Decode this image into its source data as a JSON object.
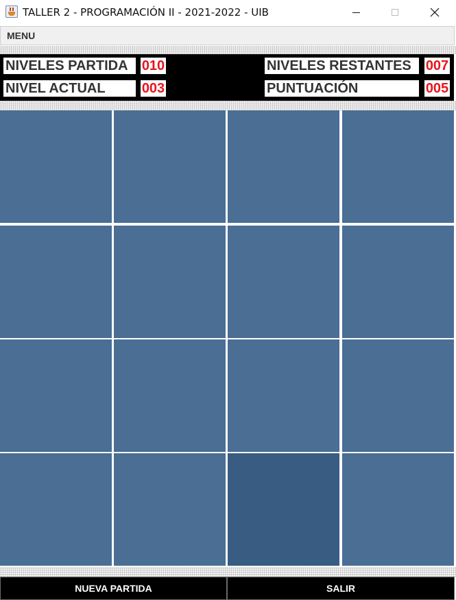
{
  "window": {
    "title": "TALLER 2 - PROGRAMACIÓN II - 2021-2022 - UIB",
    "icon": "java-app-icon"
  },
  "menubar": {
    "menu_label": "MENU"
  },
  "info": {
    "niveles_partida": {
      "label": "NIVELES PARTIDA",
      "value": "010"
    },
    "niveles_restantes": {
      "label": "NIVELES RESTANTES",
      "value": "007"
    },
    "nivel_actual": {
      "label": "NIVEL ACTUAL",
      "value": "003"
    },
    "puntuacion": {
      "label": "PUNTUACIÓN",
      "value": "005"
    }
  },
  "board": {
    "rows": 4,
    "cols": 4,
    "tile_color": "#4a6e94",
    "highlight_color": "#385c82",
    "highlighted_tile": {
      "row": 3,
      "col": 2
    }
  },
  "buttons": {
    "nueva_partida": "NUEVA PARTIDA",
    "salir": "SALIR"
  }
}
